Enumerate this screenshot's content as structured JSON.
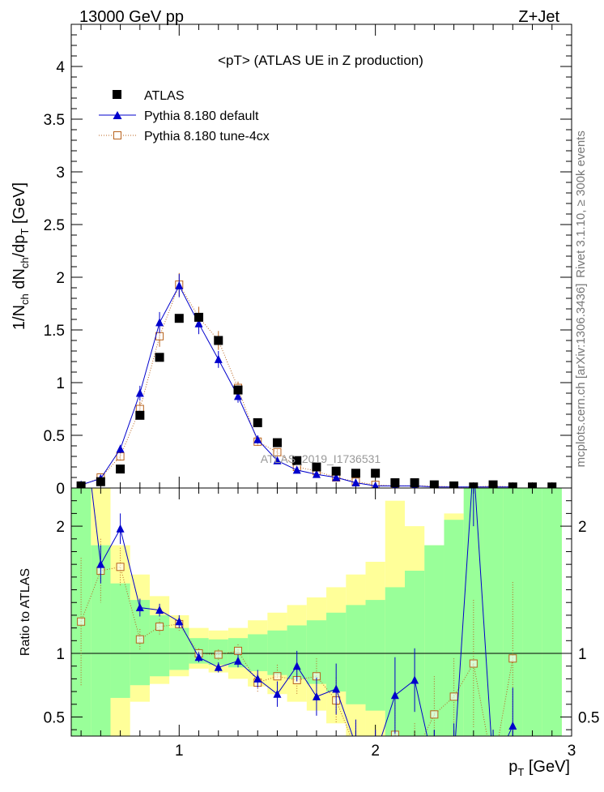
{
  "header": {
    "left": "13000 GeV pp",
    "right": "Z+Jet"
  },
  "side_labels": {
    "rivet": "Rivet 3.1.10, ≥ 300k events",
    "mcplots": "mcplots.cern.ch [arXiv:1306.3436]"
  },
  "watermark": "ATLAS_2019_I1736531",
  "chart_data": [
    {
      "type": "scatter",
      "title": "<pT>  (ATLAS UE in Z production)",
      "xlabel": "p_T [GeV]",
      "ylabel": "1/N_ch dN_ch/dp_T [GeV]",
      "xlim": [
        0.45,
        3.0
      ],
      "ylim": [
        0,
        4.4
      ],
      "y_ticks": [
        0,
        0.5,
        1,
        1.5,
        2,
        2.5,
        3,
        3.5,
        4
      ],
      "y_tick_labels": [
        "0",
        "0.5",
        "1",
        "1.5",
        "2",
        "2.5",
        "3",
        "3.5",
        "4"
      ],
      "legend_position": "top-left",
      "series": [
        {
          "name": "ATLAS",
          "color": "#000000",
          "marker": "square-filled",
          "x": [
            0.5,
            0.6,
            0.7,
            0.8,
            0.9,
            1.0,
            1.1,
            1.2,
            1.3,
            1.4,
            1.5,
            1.6,
            1.7,
            1.8,
            1.9,
            2.0,
            2.1,
            2.2,
            2.3,
            2.4,
            2.5,
            2.6,
            2.7,
            2.8,
            2.9
          ],
          "y": [
            0.02,
            0.06,
            0.18,
            0.69,
            1.24,
            1.61,
            1.62,
            1.4,
            0.93,
            0.62,
            0.43,
            0.26,
            0.2,
            0.16,
            0.14,
            0.14,
            0.05,
            0.05,
            0.03,
            0.02,
            0.01,
            0.03,
            0.01,
            0.01,
            0.01
          ]
        },
        {
          "name": "Pythia 8.180 default",
          "color": "#0000cc",
          "marker": "triangle-filled",
          "x": [
            0.5,
            0.6,
            0.7,
            0.8,
            0.9,
            1.0,
            1.1,
            1.2,
            1.3,
            1.4,
            1.5,
            1.6,
            1.7,
            1.8,
            1.9,
            2.0,
            2.1,
            2.2,
            2.3,
            2.4,
            2.5,
            2.6,
            2.7
          ],
          "y": [
            0.03,
            0.09,
            0.37,
            0.9,
            1.57,
            1.92,
            1.56,
            1.22,
            0.87,
            0.46,
            0.26,
            0.17,
            0.13,
            0.1,
            0.05,
            0.02,
            0.02,
            0.02,
            0.01,
            0.01,
            0.01,
            0.01,
            0.01
          ],
          "yerr": [
            0.01,
            0.02,
            0.04,
            0.07,
            0.1,
            0.11,
            0.1,
            0.08,
            0.06,
            0.04,
            0.03,
            0.02,
            0.02,
            0.02,
            0.01,
            0.01,
            0.01,
            0.01,
            0.01,
            0.01,
            0.01,
            0.01,
            0.01
          ]
        },
        {
          "name": "Pythia 8.180 tune-4cx",
          "color": "#b8621c",
          "marker": "square-open",
          "x": [
            0.5,
            0.6,
            0.7,
            0.8,
            0.9,
            1.0,
            1.1,
            1.2,
            1.3,
            1.4,
            1.5,
            1.6,
            1.7,
            1.8,
            1.9,
            2.0,
            2.1,
            2.2,
            2.3,
            2.4,
            2.5,
            2.6,
            2.7
          ],
          "y": [
            0.02,
            0.1,
            0.3,
            0.75,
            1.44,
            1.93,
            1.62,
            1.4,
            0.95,
            0.44,
            0.34,
            0.2,
            0.16,
            0.1,
            0.06,
            0.03,
            0.02,
            0.02,
            0.02,
            0.01,
            0.01,
            0.02,
            0.01
          ],
          "yerr": [
            0.01,
            0.02,
            0.04,
            0.07,
            0.1,
            0.11,
            0.1,
            0.09,
            0.06,
            0.04,
            0.03,
            0.02,
            0.02,
            0.02,
            0.01,
            0.01,
            0.01,
            0.01,
            0.01,
            0.01,
            0.01,
            0.01,
            0.01
          ]
        }
      ]
    },
    {
      "type": "line",
      "title": "",
      "xlabel": "p_T [GeV]",
      "ylabel": "Ratio to ATLAS",
      "xlim": [
        0.45,
        3.0
      ],
      "ylim": [
        0.35,
        2.3
      ],
      "x_ticks": [
        1,
        2,
        3
      ],
      "x_tick_labels": [
        "1",
        "2",
        "3"
      ],
      "y_ticks": [
        0.5,
        1,
        2
      ],
      "y_tick_labels": [
        "0.5",
        "1",
        "2"
      ],
      "reference_line": 1,
      "bands": {
        "bin_edges": [
          0.45,
          0.55,
          0.65,
          0.75,
          0.85,
          0.95,
          1.05,
          1.15,
          1.25,
          1.35,
          1.45,
          1.55,
          1.65,
          1.75,
          1.85,
          1.95,
          2.05,
          2.15,
          2.25,
          2.35,
          2.45,
          2.55,
          2.65,
          2.75,
          2.85,
          2.95
        ],
        "green_low": [
          0.35,
          0.35,
          0.65,
          0.75,
          0.82,
          0.87,
          0.92,
          0.91,
          0.89,
          0.86,
          0.83,
          0.8,
          0.76,
          0.7,
          0.6,
          0.55,
          0.35,
          0.35,
          0.35,
          0.35,
          0.35,
          0.35,
          0.35,
          0.35,
          0.35
        ],
        "green_high": [
          2.3,
          1.85,
          1.55,
          1.42,
          1.3,
          1.2,
          1.12,
          1.11,
          1.12,
          1.15,
          1.18,
          1.22,
          1.26,
          1.32,
          1.38,
          1.42,
          1.52,
          1.65,
          1.85,
          2.05,
          2.3,
          2.3,
          2.3,
          2.3,
          2.3
        ],
        "yellow_low": [
          0.35,
          0.35,
          0.35,
          0.62,
          0.76,
          0.82,
          0.88,
          0.85,
          0.8,
          0.74,
          0.68,
          0.62,
          0.55,
          0.45,
          0.35,
          0.35,
          0.35,
          0.35,
          0.35,
          0.35,
          0.35,
          0.35,
          0.35,
          0.35,
          0.35
        ],
        "yellow_high": [
          2.3,
          2.3,
          1.85,
          1.62,
          1.45,
          1.3,
          1.2,
          1.18,
          1.2,
          1.26,
          1.32,
          1.38,
          1.44,
          1.52,
          1.62,
          1.72,
          2.2,
          2.0,
          1.85,
          2.1,
          2.2,
          2.3,
          2.3,
          2.25,
          2.2
        ]
      },
      "series": [
        {
          "name": "Pythia 8.180 default",
          "color": "#0000cc",
          "marker": "triangle-filled",
          "x": [
            0.5,
            0.6,
            0.7,
            0.8,
            0.9,
            1.0,
            1.1,
            1.2,
            1.3,
            1.4,
            1.5,
            1.6,
            1.7,
            1.8,
            1.9,
            2.0,
            2.1,
            2.2,
            2.3,
            2.4,
            2.5,
            2.6,
            2.7
          ],
          "y": [
            3.0,
            1.7,
            1.98,
            1.36,
            1.34,
            1.25,
            0.97,
            0.89,
            0.94,
            0.8,
            0.68,
            0.9,
            0.66,
            0.72,
            0.28,
            0.2,
            0.67,
            0.79,
            0.1,
            0.15,
            2.5,
            0.1,
            0.43
          ],
          "yerr": [
            0.3,
            0.15,
            0.12,
            0.07,
            0.05,
            0.05,
            0.04,
            0.04,
            0.05,
            0.07,
            0.1,
            0.12,
            0.15,
            0.2,
            0.2,
            0.2,
            0.3,
            0.25,
            0.3,
            0.3,
            0.5,
            0.3,
            0.3
          ]
        },
        {
          "name": "Pythia 8.180 tune-4cx",
          "color": "#b8621c",
          "marker": "square-open",
          "x": [
            0.5,
            0.6,
            0.7,
            0.8,
            0.9,
            1.0,
            1.1,
            1.2,
            1.3,
            1.4,
            1.5,
            1.6,
            1.7,
            1.8,
            1.9,
            2.0,
            2.1,
            2.2,
            2.3,
            2.4,
            2.5,
            2.6,
            2.7
          ],
          "y": [
            1.25,
            1.65,
            1.68,
            1.11,
            1.21,
            1.23,
            1.0,
            0.99,
            1.02,
            0.77,
            0.82,
            0.79,
            0.82,
            0.63,
            0.25,
            0.2,
            0.36,
            0.2,
            0.52,
            0.66,
            0.92,
            0.1,
            0.96
          ],
          "yerr": [
            0.5,
            0.25,
            0.15,
            0.08,
            0.06,
            0.05,
            0.04,
            0.04,
            0.05,
            0.07,
            0.09,
            0.11,
            0.14,
            0.18,
            0.2,
            0.2,
            0.25,
            0.25,
            0.3,
            0.3,
            0.5,
            0.3,
            0.6
          ]
        }
      ]
    }
  ]
}
